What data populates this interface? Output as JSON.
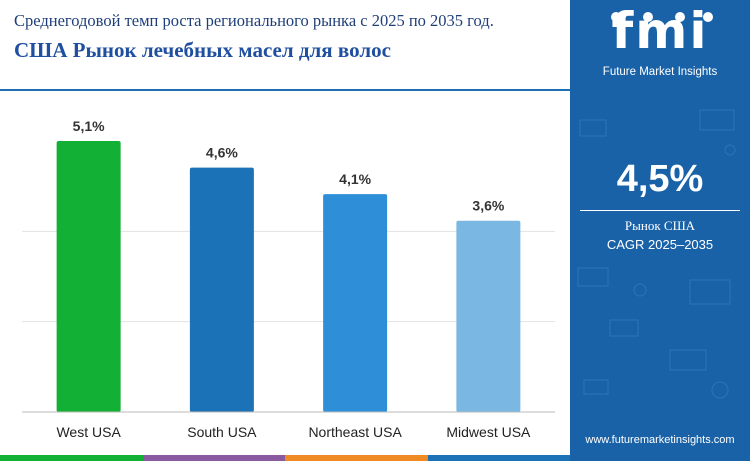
{
  "header": {
    "subtitle": "Среднегодовой темп роста регионального рынка с 2025 по 2035 год.",
    "title": "США Рынок лечебных масел для волос"
  },
  "chart_data": {
    "type": "bar",
    "categories": [
      "West USA",
      "South USA",
      "Northeast USA",
      "Midwest USA"
    ],
    "values": [
      5.1,
      4.6,
      4.1,
      3.6
    ],
    "value_labels": [
      "5,1%",
      "4,6%",
      "4,1%",
      "3,6%"
    ],
    "colors": [
      "#12b135",
      "#1c72b6",
      "#2e8fd8",
      "#7ab7e2"
    ],
    "ylim": [
      0,
      5.1
    ],
    "grid": true,
    "xlabel": "",
    "ylabel": ""
  },
  "sidebar": {
    "logo_text": "fmi",
    "logo_sub": "Future Market Insights",
    "stat_value": "4,5%",
    "stat_label_1": "Рынок США",
    "stat_label_2": "CAGR 2025–2035",
    "url": "www.futuremarketinsights.com",
    "background": "#1a62a8"
  },
  "strip_colors": [
    "#12b135",
    "#8a5aa0",
    "#f08a24",
    "#1c72b6"
  ]
}
